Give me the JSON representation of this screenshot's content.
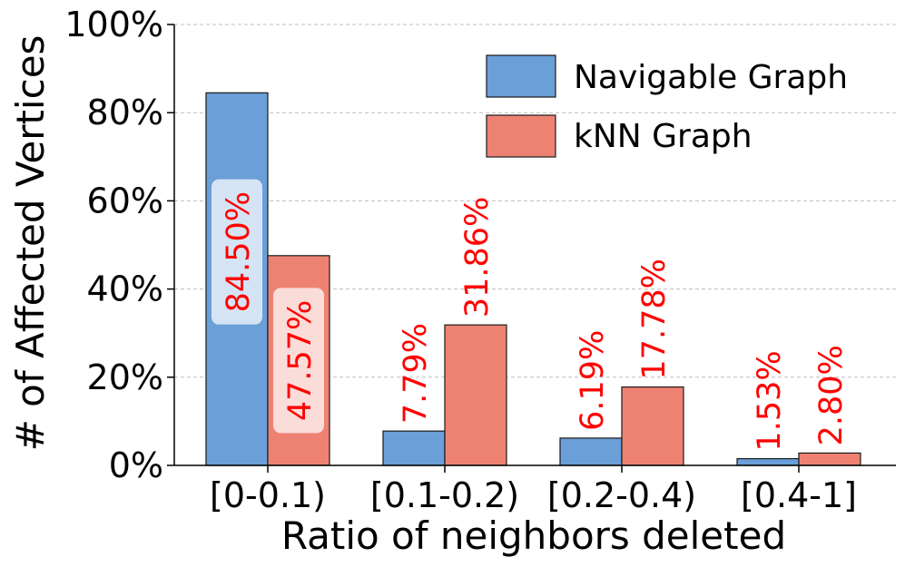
{
  "chart_data": {
    "type": "bar",
    "categories": [
      "[0-0.1)",
      "[0.1-0.2)",
      "[0.2-0.4)",
      "[0.4-1]"
    ],
    "series": [
      {
        "name": "Navigable Graph",
        "values": [
          84.5,
          7.79,
          6.19,
          1.53
        ],
        "labels": [
          "84.50%",
          "7.79%",
          "6.19%",
          "1.53%"
        ],
        "color": "#6a9fd8"
      },
      {
        "name": "kNN Graph",
        "values": [
          47.57,
          31.86,
          17.78,
          2.8
        ],
        "labels": [
          "47.57%",
          "31.86%",
          "17.78%",
          "2.80%"
        ],
        "color": "#ee8272"
      }
    ],
    "xlabel": "Ratio of neighbors deleted",
    "ylabel": "# of Affected Vertices",
    "ylim": [
      0,
      100
    ],
    "yticks": [
      "0%",
      "20%",
      "40%",
      "60%",
      "80%",
      "100%"
    ],
    "grid": "horizontal dashed",
    "legend_position": "top-right",
    "label_color": "#ff0000"
  }
}
